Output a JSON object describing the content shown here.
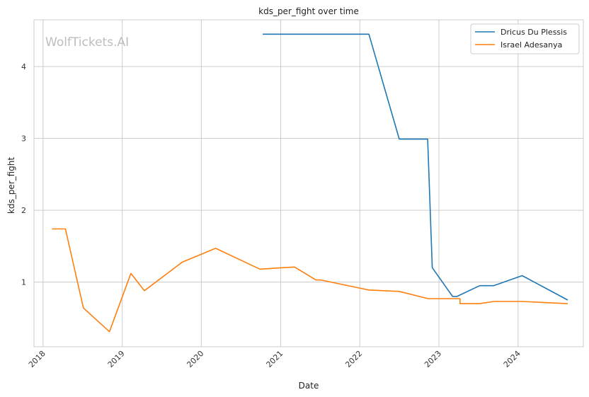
{
  "watermark": "WolfTickets.AI",
  "chart_data": {
    "type": "line",
    "title": "kds_per_fight over time",
    "xlabel": "Date",
    "ylabel": "kds_per_fight",
    "x_type": "date",
    "xlim": [
      "2017-11-20",
      "2024-10-28"
    ],
    "ylim": [
      0.1,
      4.65
    ],
    "x_ticks": [
      "2018",
      "2019",
      "2020",
      "2021",
      "2022",
      "2023",
      "2024"
    ],
    "y_ticks": [
      1,
      2,
      3,
      4
    ],
    "grid": true,
    "legend_position": "top-right",
    "series": [
      {
        "name": "Dricus Du Plessis",
        "color": "#1f77b4",
        "points": [
          {
            "x": "2020-10-10",
            "y": 4.45
          },
          {
            "x": "2022-02-12",
            "y": 4.45
          },
          {
            "x": "2022-07-02",
            "y": 2.99
          },
          {
            "x": "2022-11-10",
            "y": 2.99
          },
          {
            "x": "2022-12-01",
            "y": 1.2
          },
          {
            "x": "2023-03-05",
            "y": 0.8
          },
          {
            "x": "2023-03-25",
            "y": 0.8
          },
          {
            "x": "2023-07-08",
            "y": 0.95
          },
          {
            "x": "2023-09-10",
            "y": 0.95
          },
          {
            "x": "2024-01-20",
            "y": 1.09
          },
          {
            "x": "2024-08-17",
            "y": 0.75
          }
        ]
      },
      {
        "name": "Israel Adesanya",
        "color": "#ff7f0e",
        "points": [
          {
            "x": "2018-02-11",
            "y": 1.74
          },
          {
            "x": "2018-04-14",
            "y": 1.74
          },
          {
            "x": "2018-07-06",
            "y": 0.64
          },
          {
            "x": "2018-11-03",
            "y": 0.31
          },
          {
            "x": "2019-02-10",
            "y": 1.12
          },
          {
            "x": "2019-04-13",
            "y": 0.88
          },
          {
            "x": "2019-10-06",
            "y": 1.28
          },
          {
            "x": "2020-03-07",
            "y": 1.47
          },
          {
            "x": "2020-09-27",
            "y": 1.18
          },
          {
            "x": "2021-03-06",
            "y": 1.21
          },
          {
            "x": "2021-06-12",
            "y": 1.03
          },
          {
            "x": "2021-07-05",
            "y": 1.03
          },
          {
            "x": "2022-02-12",
            "y": 0.89
          },
          {
            "x": "2022-07-02",
            "y": 0.87
          },
          {
            "x": "2022-11-12",
            "y": 0.77
          },
          {
            "x": "2023-04-08",
            "y": 0.77
          },
          {
            "x": "2023-04-08",
            "y": 0.7
          },
          {
            "x": "2023-07-08",
            "y": 0.7
          },
          {
            "x": "2023-09-10",
            "y": 0.73
          },
          {
            "x": "2024-01-20",
            "y": 0.73
          },
          {
            "x": "2024-08-17",
            "y": 0.7
          }
        ]
      }
    ]
  }
}
